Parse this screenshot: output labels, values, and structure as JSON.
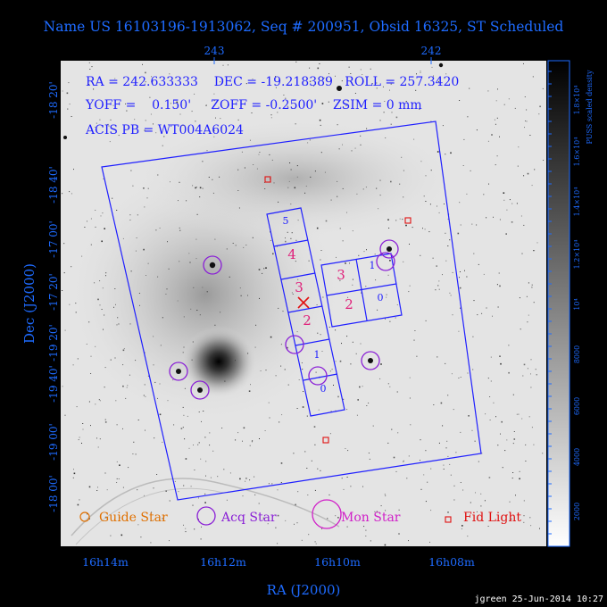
{
  "header": {
    "title": "Name US 16103196-1913062, Seq # 200951, Obsid 16325, ST Scheduled"
  },
  "top_axis_ticks": [
    "243",
    "242"
  ],
  "left_axis_ticks": [
    "-18 20'",
    "-18 40'",
    "-17 00'",
    "-17 20'",
    "-19 20'",
    "-19 40'",
    "-19 00'",
    "-18 00'"
  ],
  "bottom_axis_ticks": [
    "16h14m",
    "16h12m",
    "16h10m",
    "16h08m"
  ],
  "axis_labels": {
    "x": "RA (J2000)",
    "y": "Dec (J2000)"
  },
  "params": {
    "line1": "RA = 242.633333    DEC = -19.218389   ROLL = 257.3420",
    "line2": "YOFF =    0.150'     ZOFF = -0.2500'    ZSIM = 0 mm",
    "line3": "ACIS PB = WT004A6024"
  },
  "chips_s": [
    "5",
    "4",
    "3",
    "2",
    "1",
    "0"
  ],
  "chips_i": [
    "3",
    "1",
    "2",
    "0"
  ],
  "legend": {
    "guide": "Guide Star",
    "acq": "Acq Star",
    "mon": "Mon Star",
    "fid": "Fid Light"
  },
  "colorbar": {
    "label": "PUSS scaled density",
    "ticks": [
      "2000",
      "4000",
      "6000",
      "8000",
      "10⁴",
      "1.2×10⁴",
      "1.4×10⁴",
      "1.6×10⁴",
      "1.8×10⁴"
    ]
  },
  "footer": "jgreen 25-Jun-2014 10:27",
  "colors": {
    "text": "#1e6bff",
    "field": "#1f1fff",
    "chip_number_red": "#e0207a",
    "acq": "#8a1fd6",
    "fid": "#e01010",
    "guide": "#e07000",
    "mon": "#d01fc8"
  }
}
